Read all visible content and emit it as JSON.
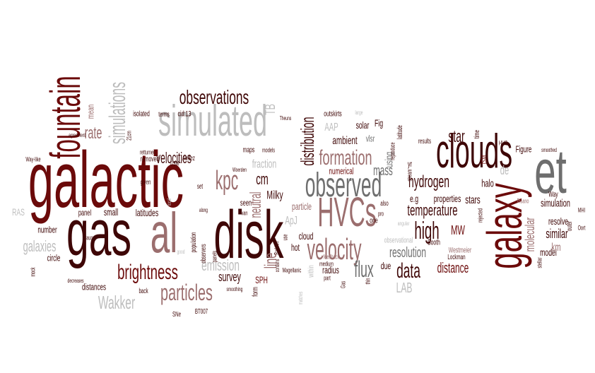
{
  "colors": {
    "maroon": "#6b0a0a",
    "dark-maroon": "#3e0606",
    "dusky-rose": "#9b6e6e",
    "grey": "#6e6e6e",
    "light-grey": "#bdbdbd"
  },
  "words": [
    {
      "text": "galactic",
      "color": "maroon"
    },
    {
      "text": "gas",
      "color": "dark-maroon"
    },
    {
      "text": "al",
      "color": "dusky-rose"
    },
    {
      "text": "disk",
      "color": "dark-maroon"
    },
    {
      "text": "simulated",
      "color": "light-grey"
    },
    {
      "text": "clouds",
      "color": "dark-maroon"
    },
    {
      "text": "et",
      "color": "grey"
    },
    {
      "text": "galaxy",
      "color": "maroon"
    },
    {
      "text": "HVCs",
      "color": "dusky-rose"
    },
    {
      "text": "observed",
      "color": "grey"
    },
    {
      "text": "fountain",
      "color": "maroon"
    },
    {
      "text": "simulations",
      "color": "light-grey"
    },
    {
      "text": "velocity",
      "color": "dusky-rose"
    },
    {
      "text": "brightness",
      "color": "maroon"
    },
    {
      "text": "particles",
      "color": "dusky-rose"
    },
    {
      "text": "observations",
      "color": "dark-maroon"
    },
    {
      "text": "distribution",
      "color": "dark-maroon"
    },
    {
      "text": "formation",
      "color": "dusky-rose"
    },
    {
      "text": "kpc",
      "color": "dusky-rose"
    },
    {
      "text": "flux",
      "color": "grey"
    },
    {
      "text": "data",
      "color": "dark-maroon"
    },
    {
      "text": "high",
      "color": "dark-maroon"
    },
    {
      "text": "star",
      "color": "dark-maroon"
    },
    {
      "text": "hydrogen",
      "color": "dark-maroon"
    },
    {
      "text": "temperature",
      "color": "dark-maroon"
    },
    {
      "text": "emission",
      "color": "light-grey"
    },
    {
      "text": "Wakker",
      "color": "light-grey"
    },
    {
      "text": "galaxies",
      "color": "light-grey"
    },
    {
      "text": "rate",
      "color": "dusky-rose"
    },
    {
      "text": "velocities",
      "color": "dark-maroon"
    },
    {
      "text": "neutral",
      "color": "dusky-rose"
    },
    {
      "text": "cm",
      "color": "dark-maroon"
    },
    {
      "text": "Milky",
      "color": "dark-maroon"
    },
    {
      "text": "line",
      "color": "dusky-rose"
    },
    {
      "text": "survey",
      "color": "dark-maroon"
    },
    {
      "text": "resolution",
      "color": "grey"
    },
    {
      "text": "distance",
      "color": "maroon"
    },
    {
      "text": "LAB",
      "color": "light-grey"
    },
    {
      "text": "MW",
      "color": "maroon"
    },
    {
      "text": "molecular",
      "color": "dusky-rose"
    },
    {
      "text": "similar",
      "color": "dark-maroon"
    },
    {
      "text": "mass",
      "color": "grey"
    },
    {
      "text": "ambient",
      "color": "dark-maroon"
    },
    {
      "text": "fraction",
      "color": "light-grey"
    },
    {
      "text": "TB",
      "color": "light-grey"
    },
    {
      "text": "mean",
      "color": "dusky-rose"
    },
    {
      "text": "cid:13",
      "color": "dark-maroon"
    },
    {
      "text": "ApJ",
      "color": "light-grey"
    },
    {
      "text": "AAP",
      "color": "light-grey"
    },
    {
      "text": "solar",
      "color": "dark-maroon"
    },
    {
      "text": "Fig",
      "color": "dark-maroon"
    },
    {
      "text": "vlsr",
      "color": "grey"
    },
    {
      "text": "using",
      "color": "grey"
    },
    {
      "text": "numerical",
      "color": "maroon"
    },
    {
      "text": "outskirts",
      "color": "dark-maroon"
    },
    {
      "text": "e.g",
      "color": "dark-maroon"
    },
    {
      "text": "properties",
      "color": "dark-maroon"
    },
    {
      "text": "stars",
      "color": "dark-maroon"
    },
    {
      "text": "halo",
      "color": "dark-maroon"
    },
    {
      "text": "simulation",
      "color": "dark-maroon"
    },
    {
      "text": "model",
      "color": "dark-maroon"
    },
    {
      "text": "resolve",
      "color": "dark-maroon"
    },
    {
      "text": "km",
      "color": "dusky-rose"
    },
    {
      "text": "de",
      "color": "light-grey"
    },
    {
      "text": "Way",
      "color": "dark-maroon"
    },
    {
      "text": "small",
      "color": "dark-maroon"
    },
    {
      "text": "latitudes",
      "color": "dark-maroon"
    },
    {
      "text": "panel",
      "color": "dark-maroon"
    },
    {
      "text": "number",
      "color": "dark-maroon"
    },
    {
      "text": "circle",
      "color": "dark-maroon"
    },
    {
      "text": "distances",
      "color": "dark-maroon"
    },
    {
      "text": "RAS",
      "color": "light-grey"
    },
    {
      "text": "particle",
      "color": "dusky-rose"
    },
    {
      "text": "SPH",
      "color": "maroon"
    },
    {
      "text": "hot",
      "color": "dark-maroon"
    },
    {
      "text": "cloud",
      "color": "dark-maroon"
    },
    {
      "text": "radius",
      "color": "dark-maroon"
    },
    {
      "text": "due",
      "color": "dark-maroon"
    },
    {
      "text": "Figure",
      "color": "dark-maroon"
    },
    {
      "text": "ISM",
      "color": "maroon"
    },
    {
      "text": "HVC",
      "color": "dark-maroon"
    },
    {
      "text": "time",
      "color": "dark-maroon"
    },
    {
      "text": "Westmeier",
      "color": "dusky-rose"
    },
    {
      "text": "Lockman",
      "color": "dark-maroon"
    },
    {
      "text": "Booth",
      "color": "dark-maroon"
    },
    {
      "text": "seen",
      "color": "dark-maroon"
    },
    {
      "text": "set",
      "color": "dark-maroon"
    },
    {
      "text": "van",
      "color": "dark-maroon"
    },
    {
      "text": "Avillez",
      "color": "dark-maroon"
    },
    {
      "text": "0.5M",
      "color": "dark-maroon"
    },
    {
      "text": "maps",
      "color": "dark-maroon"
    },
    {
      "text": "models",
      "color": "dark-maroon"
    },
    {
      "text": "Woerden",
      "color": "dark-maroon"
    },
    {
      "text": "isolated",
      "color": "dark-maroon"
    },
    {
      "text": "terms",
      "color": "dark-maroon"
    },
    {
      "text": "21cm",
      "color": "dark-maroon"
    },
    {
      "text": "retturned",
      "color": "dark-maroon"
    },
    {
      "text": "removed",
      "color": "dark-maroon"
    },
    {
      "text": "given",
      "color": "dark-maroon"
    },
    {
      "text": "Braun",
      "color": "dark-maroon"
    },
    {
      "text": "back",
      "color": "dark-maroon"
    },
    {
      "text": "SNe",
      "color": "dark-maroon"
    },
    {
      "text": "BT007",
      "color": "dark-maroon"
    },
    {
      "text": "smoothing",
      "color": "dark-maroon"
    },
    {
      "text": "mock",
      "color": "dark-maroon"
    },
    {
      "text": "Way-like",
      "color": "dark-maroon"
    },
    {
      "text": "decreases",
      "color": "dark-maroon"
    },
    {
      "text": "agreement",
      "color": "dark-maroon"
    },
    {
      "text": "Theuns",
      "color": "dark-maroon"
    },
    {
      "text": "large",
      "color": "light-grey"
    },
    {
      "text": "Magellanic",
      "color": "dark-maroon"
    },
    {
      "text": "feedback",
      "color": "dusky-rose"
    },
    {
      "text": "medium",
      "color": "dark-maroon"
    },
    {
      "text": "part",
      "color": "dark-maroon"
    },
    {
      "text": "Gas",
      "color": "dark-maroon"
    },
    {
      "text": "thin",
      "color": "dark-maroon"
    },
    {
      "text": "one",
      "color": "dark-maroon"
    },
    {
      "text": "also",
      "color": "dark-maroon"
    },
    {
      "text": "pro",
      "color": "dark-maroon"
    },
    {
      "text": "yr",
      "color": "dark-maroon"
    },
    {
      "text": "results",
      "color": "dark-maroon"
    },
    {
      "text": "observers",
      "color": "dark-maroon"
    },
    {
      "text": "population",
      "color": "dark-maroon"
    },
    {
      "text": "panels",
      "color": "dark-maroon"
    },
    {
      "text": "smoothed",
      "color": "dark-maroon"
    },
    {
      "text": "Pisano",
      "color": "dusky-rose"
    },
    {
      "text": "outer",
      "color": "dark-maroon"
    },
    {
      "text": "Oort",
      "color": "dark-maroon"
    },
    {
      "text": "MHI",
      "color": "dark-maroon"
    },
    {
      "text": "stellar",
      "color": "dark-maroon"
    },
    {
      "text": "latitude",
      "color": "dark-maroon"
    },
    {
      "text": "reproduce",
      "color": "dark-maroon"
    },
    {
      "text": "stream",
      "color": "dark-maroon"
    },
    {
      "text": "Barbieri",
      "color": "dark-maroon"
    },
    {
      "text": "rejected",
      "color": "dark-maroon"
    },
    {
      "text": "observational",
      "color": "light-grey"
    },
    {
      "text": "within",
      "color": "light-grey"
    },
    {
      "text": "form",
      "color": "dark-maroon"
    },
    {
      "text": "use",
      "color": "dark-maroon"
    },
    {
      "text": "contains",
      "color": "dark-maroon"
    },
    {
      "text": "matches",
      "color": "light-grey"
    },
    {
      "text": "along",
      "color": "dark-maroon"
    },
    {
      "text": "good",
      "color": "light-grey"
    },
    {
      "text": "local",
      "color": "light-grey"
    },
    {
      "text": "angular",
      "color": "light-grey"
    }
  ]
}
